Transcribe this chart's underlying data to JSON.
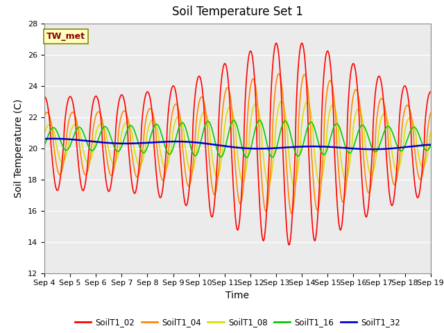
{
  "title": "Soil Temperature Set 1",
  "xlabel": "Time",
  "ylabel": "Soil Temperature (C)",
  "ylim": [
    12,
    28
  ],
  "series": {
    "SoilT1_02": {
      "color": "#FF0000",
      "lw": 1.2
    },
    "SoilT1_04": {
      "color": "#FF8800",
      "lw": 1.2
    },
    "SoilT1_08": {
      "color": "#DDDD00",
      "lw": 1.2
    },
    "SoilT1_16": {
      "color": "#00CC00",
      "lw": 1.2
    },
    "SoilT1_32": {
      "color": "#0000CC",
      "lw": 1.8
    }
  },
  "background_color": "#EBEBEB",
  "tick_labels": [
    "Sep 4",
    "Sep 5",
    "Sep 6",
    "Sep 7",
    "Sep 8",
    "Sep 9",
    "Sep 10",
    "Sep 11",
    "Sep 12",
    "Sep 13",
    "Sep 14",
    "Sep 15",
    "Sep 16",
    "Sep 17",
    "Sep 18",
    "Sep 19"
  ],
  "yticks": [
    12,
    14,
    16,
    18,
    20,
    22,
    24,
    26,
    28
  ],
  "title_fontsize": 12,
  "axis_label_fontsize": 10,
  "tick_fontsize": 8
}
